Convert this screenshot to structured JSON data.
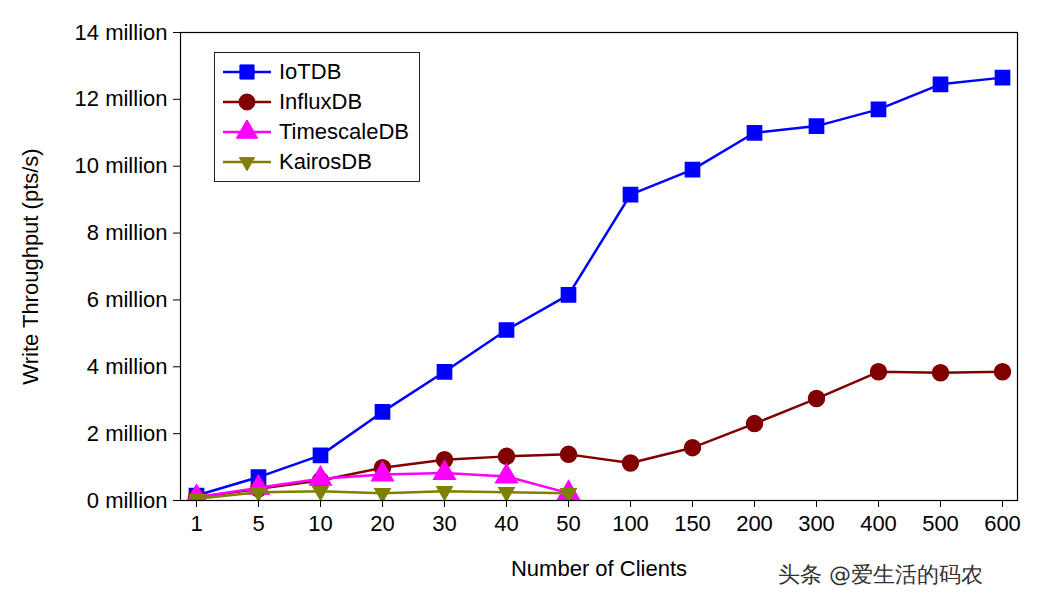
{
  "chart_data": {
    "type": "line",
    "xlabel": "Number of Clients",
    "ylabel": "Write Throughput (pts/s)",
    "x": [
      1,
      5,
      10,
      20,
      30,
      40,
      50,
      100,
      150,
      200,
      300,
      400,
      500,
      600
    ],
    "ylim": [
      0,
      14
    ],
    "yticks": [
      {
        "value": 0,
        "label": "0 million"
      },
      {
        "value": 2,
        "label": "2 million"
      },
      {
        "value": 4,
        "label": "4 million"
      },
      {
        "value": 6,
        "label": "6 million"
      },
      {
        "value": 8,
        "label": "8 million"
      },
      {
        "value": 10,
        "label": "10 million"
      },
      {
        "value": 12,
        "label": "12 million"
      },
      {
        "value": 14,
        "label": "14 million"
      }
    ],
    "legend": "upper left",
    "annotations": [
      "头条 @爱生活的码农"
    ],
    "series": [
      {
        "name": "IoTDB",
        "color": "#0000ff",
        "marker": "square",
        "values": [
          0.15,
          0.7,
          1.35,
          2.65,
          3.85,
          5.1,
          6.15,
          9.15,
          9.9,
          11.0,
          11.2,
          11.7,
          12.45,
          12.65
        ]
      },
      {
        "name": "InfluxDB",
        "color": "#800000",
        "marker": "circle",
        "values": [
          0.1,
          0.35,
          0.6,
          0.98,
          1.22,
          1.32,
          1.38,
          1.12,
          1.58,
          2.3,
          3.05,
          3.85,
          3.82,
          3.85
        ]
      },
      {
        "name": "TimescaleDB",
        "color": "#ff00ff",
        "marker": "triangle",
        "values": [
          0.1,
          0.38,
          0.65,
          0.78,
          0.82,
          0.72,
          0.22,
          null,
          null,
          null,
          null,
          null,
          null,
          null
        ]
      },
      {
        "name": "KairosDB",
        "color": "#808000",
        "marker": "triangle-down",
        "values": [
          0.05,
          0.25,
          0.28,
          0.22,
          0.28,
          0.25,
          0.22,
          null,
          null,
          null,
          null,
          null,
          null,
          null
        ]
      }
    ]
  }
}
